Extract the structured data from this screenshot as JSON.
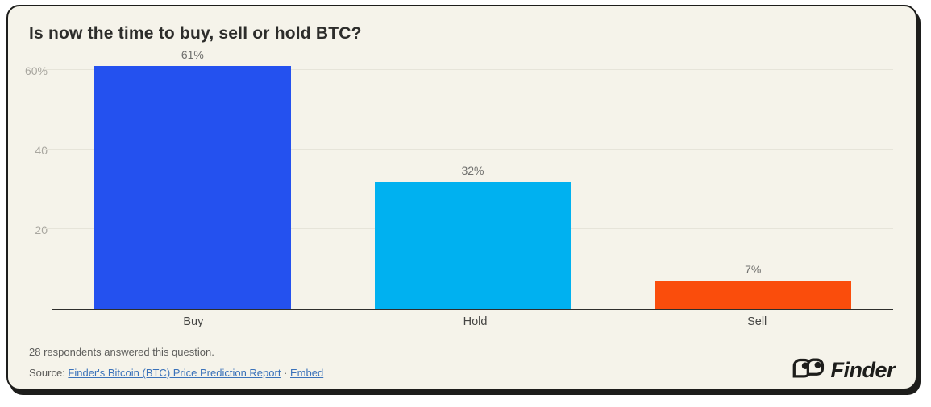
{
  "title": "Is now the time to buy, sell or hold BTC?",
  "chart_data": {
    "type": "bar",
    "title": "Is now the time to buy, sell or hold BTC?",
    "categories": [
      "Buy",
      "Hold",
      "Sell"
    ],
    "values": [
      61,
      32,
      7
    ],
    "value_labels": [
      "61%",
      "32%",
      "7%"
    ],
    "bar_colors": [
      "#2451ef",
      "#00b1f0",
      "#fa4d0c"
    ],
    "yticks": [
      {
        "value": 20,
        "label": "20"
      },
      {
        "value": 40,
        "label": "40"
      },
      {
        "value": 60,
        "label": "60%"
      }
    ],
    "ylim": [
      0,
      61
    ],
    "grid": "horizontal",
    "legend": "none",
    "xlabel": "",
    "ylabel": ""
  },
  "footer": {
    "respondents_note": "28 respondents answered this question.",
    "source_prefix": "Source: ",
    "source_link_label": "Finder's Bitcoin (BTC) Price Prediction Report",
    "separator": " · ",
    "embed_link_label": "Embed",
    "brand_name": "Finder"
  },
  "colors": {
    "card_background": "#f5f3ea",
    "card_border": "#1d1d1b",
    "buy_bar": "#2451ef",
    "hold_bar": "#00b1f0",
    "sell_bar": "#fa4d0c",
    "link": "#3a72ba",
    "gridline": "#e6e4d9",
    "axis_line": "#2e2e2c"
  }
}
